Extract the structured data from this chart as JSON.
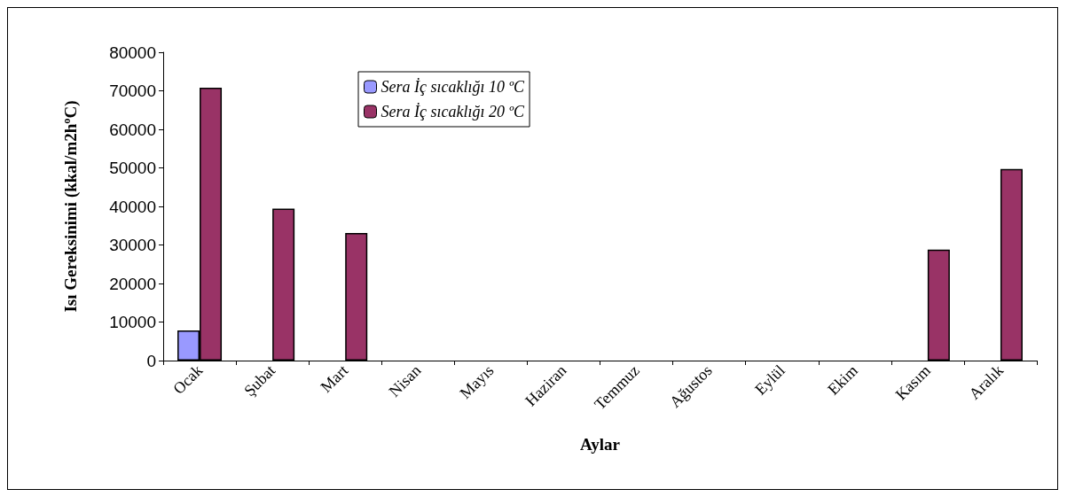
{
  "chart_data": {
    "type": "bar",
    "categories": [
      "Ocak",
      "Şubat",
      "Mart",
      "Nisan",
      "Mayıs",
      "Haziran",
      "Temmuz",
      "Ağustos",
      "Eylül",
      "Ekim",
      "Kasım",
      "Aralık"
    ],
    "series": [
      {
        "name": "Sera İç sıcaklığı 10 ºC",
        "color": "#9999ff",
        "values": [
          7800,
          null,
          null,
          null,
          null,
          null,
          null,
          null,
          null,
          null,
          null,
          null
        ]
      },
      {
        "name": "Sera İç sıcaklığı 20 ºC",
        "color": "#993366",
        "values": [
          70800,
          39400,
          33100,
          null,
          null,
          null,
          null,
          null,
          null,
          null,
          28800,
          49700
        ]
      }
    ],
    "xlabel": "Aylar",
    "ylabel": "Isı Gereksinimi (kkal/m2hºC)",
    "ylim": [
      0,
      80000
    ],
    "yticks": [
      0,
      10000,
      20000,
      30000,
      40000,
      50000,
      60000,
      70000,
      80000
    ],
    "grid": false,
    "legend": "top left"
  }
}
